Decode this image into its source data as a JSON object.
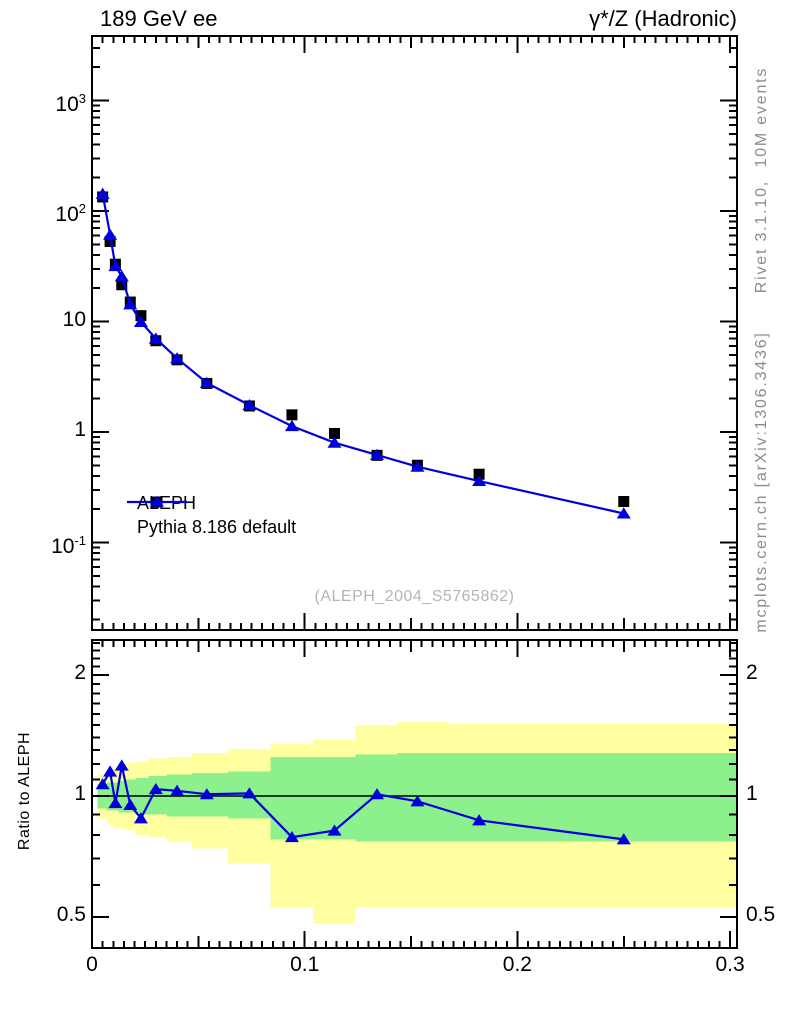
{
  "captions": {
    "rivet": "Rivet 3.1.10,  10M events",
    "mcplots": "mcplots.cern.ch [arXiv:1306.3436]"
  },
  "colors": {
    "mc_blue": "#0000dd",
    "data_black": "#000000",
    "band_inner_green": "#8cf08c",
    "band_outer_yellow": "#ffffa0",
    "caption_gray": "#8c8c8c",
    "watermark_gray": "#b5b5b5",
    "frame_black": "#000000"
  },
  "chart_data": [
    {
      "type": "line",
      "panel": "main",
      "title": "189 GeV ee",
      "title_right": "γ*/Z (Hadronic)",
      "yscale": "log",
      "xlim": [
        0,
        0.3033
      ],
      "ylim": [
        0.016,
        3800
      ],
      "grid": false,
      "legend_position": "bottom-left",
      "watermark": "(ALEPH_2004_S5765862)",
      "x": [
        0.005,
        0.0085,
        0.011,
        0.014,
        0.018,
        0.023,
        0.03,
        0.04,
        0.054,
        0.074,
        0.094,
        0.114,
        0.134,
        0.153,
        0.182,
        0.25
      ],
      "series": [
        {
          "name": "ALEPH",
          "marker": "square",
          "color": "#000000",
          "line": false,
          "values": [
            134,
            53,
            33,
            21.5,
            15,
            11.3,
            6.7,
            4.5,
            2.75,
            1.72,
            1.43,
            0.97,
            0.615,
            0.5,
            0.415,
            0.235
          ]
        },
        {
          "name": "Pythia 8.186 default",
          "marker": "triangle",
          "color": "#0000dd",
          "line": true,
          "values": [
            143,
            61,
            31.7,
            25.6,
            14.3,
            9.9,
            7.0,
            4.64,
            2.78,
            1.75,
            1.13,
            0.8,
            0.62,
            0.485,
            0.36,
            0.183
          ]
        }
      ],
      "yticks": [
        {
          "v": 1000,
          "label": "10^3"
        },
        {
          "v": 100,
          "label": "10^2"
        },
        {
          "v": 10,
          "label": "10"
        },
        {
          "v": 1,
          "label": "1"
        },
        {
          "v": 0.1,
          "label": "10^-1"
        }
      ],
      "xticks": [
        {
          "v": 0,
          "label": "0"
        },
        {
          "v": 0.1,
          "label": "0.1"
        },
        {
          "v": 0.2,
          "label": "0.2"
        },
        {
          "v": 0.3,
          "label": "0.3"
        }
      ]
    },
    {
      "type": "ratio",
      "panel": "ratio",
      "ylabel": "Ratio to ALEPH",
      "yscale": "log",
      "ylim": [
        0.42,
        2.44
      ],
      "reference_line": 1,
      "x": [
        0.005,
        0.0085,
        0.011,
        0.014,
        0.018,
        0.023,
        0.03,
        0.04,
        0.054,
        0.074,
        0.094,
        0.114,
        0.134,
        0.153,
        0.182,
        0.25
      ],
      "values": [
        1.07,
        1.15,
        0.96,
        1.19,
        0.95,
        0.88,
        1.04,
        1.03,
        1.01,
        1.015,
        0.79,
        0.82,
        1.01,
        0.97,
        0.87,
        0.78
      ],
      "bands": {
        "edges": [
          0.0025,
          0.007,
          0.01,
          0.0125,
          0.016,
          0.0205,
          0.0265,
          0.035,
          0.047,
          0.064,
          0.084,
          0.104,
          0.124,
          0.1435,
          0.1675,
          0.216,
          0.3033
        ],
        "green_lo": [
          0.93,
          0.92,
          0.92,
          0.91,
          0.91,
          0.9,
          0.9,
          0.89,
          0.89,
          0.88,
          0.78,
          0.78,
          0.77,
          0.77,
          0.77,
          0.77
        ],
        "green_hi": [
          1.07,
          1.08,
          1.08,
          1.09,
          1.1,
          1.11,
          1.12,
          1.13,
          1.14,
          1.15,
          1.25,
          1.25,
          1.27,
          1.28,
          1.28,
          1.28
        ],
        "yellow_lo": [
          0.88,
          0.85,
          0.83,
          0.83,
          0.82,
          0.8,
          0.79,
          0.77,
          0.74,
          0.68,
          0.53,
          0.48,
          0.53,
          0.53,
          0.53,
          0.53
        ],
        "yellow_hi": [
          1.13,
          1.16,
          1.18,
          1.19,
          1.21,
          1.22,
          1.24,
          1.25,
          1.28,
          1.31,
          1.35,
          1.38,
          1.5,
          1.53,
          1.51,
          1.51
        ]
      },
      "yticks": [
        {
          "v": 2,
          "label": "2"
        },
        {
          "v": 1,
          "label": "1"
        },
        {
          "v": 0.5,
          "label": "0.5"
        }
      ],
      "xticks": [
        {
          "v": 0,
          "label": "0"
        },
        {
          "v": 0.1,
          "label": "0.1"
        },
        {
          "v": 0.2,
          "label": "0.2"
        },
        {
          "v": 0.3,
          "label": "0.3"
        }
      ]
    }
  ]
}
